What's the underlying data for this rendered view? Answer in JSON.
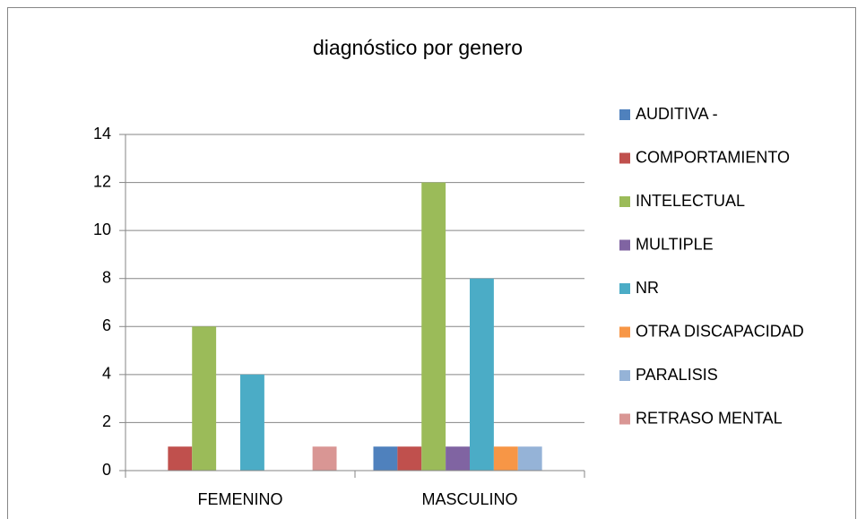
{
  "chart_data": {
    "type": "bar",
    "title": "diagnóstico por genero",
    "categories": [
      "FEMENINO",
      "MASCULINO"
    ],
    "series": [
      {
        "name": "AUDITIVA -",
        "color": "#4f81bd",
        "values": [
          0,
          1
        ]
      },
      {
        "name": "COMPORTAMIENTO",
        "color": "#c0504d",
        "values": [
          1,
          1
        ]
      },
      {
        "name": "INTELECTUAL",
        "color": "#9bbb59",
        "values": [
          6,
          12
        ]
      },
      {
        "name": "MULTIPLE",
        "color": "#8064a2",
        "values": [
          0,
          1
        ]
      },
      {
        "name": "NR",
        "color": "#4bacc6",
        "values": [
          4,
          8
        ]
      },
      {
        "name": "OTRA DISCAPACIDAD",
        "color": "#f79646",
        "values": [
          0,
          1
        ]
      },
      {
        "name": "PARALISIS",
        "color": "#95b3d7",
        "values": [
          0,
          1
        ]
      },
      {
        "name": "RETRASO MENTAL",
        "color": "#d99694",
        "values": [
          1,
          0
        ]
      }
    ],
    "ylim": [
      0,
      14
    ],
    "yticks": [
      0,
      2,
      4,
      6,
      8,
      10,
      12,
      14
    ],
    "grid": true,
    "legend": "right"
  }
}
